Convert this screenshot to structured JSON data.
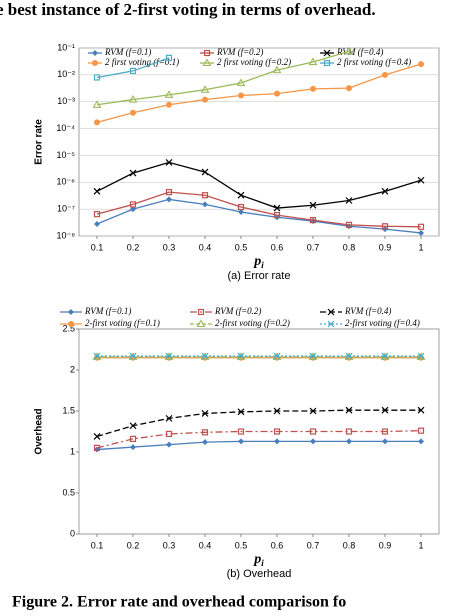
{
  "header_text": "e best instance of 2-first voting in terms of overhead.",
  "caption": "Figure 2. Error rate and overhead comparison fo",
  "chart_data": [
    {
      "type": "line",
      "subtitle": "(a) Error rate",
      "y_label": "Error rate",
      "x_label": {
        "text": "p",
        "subscript": "i"
      },
      "log_y": true,
      "grid": true,
      "x": [
        0.1,
        0.2,
        0.3,
        0.4,
        0.5,
        0.6,
        0.7,
        0.8,
        0.9,
        1
      ],
      "xlim": [
        0.05,
        1.05
      ],
      "xticks": [
        0.1,
        0.2,
        0.3,
        0.4,
        0.5,
        0.6,
        0.7,
        0.8,
        0.9,
        1
      ],
      "ylim": [
        1e-08,
        0.1
      ],
      "yticks": [
        {
          "value": 1e-08,
          "label": "10⁻⁸"
        },
        {
          "value": 1e-07,
          "label": "10⁻⁷"
        },
        {
          "value": 1e-06,
          "label": "10⁻⁶"
        },
        {
          "value": 1e-05,
          "label": "10⁻⁵"
        },
        {
          "value": 0.0001,
          "label": "10⁻⁴"
        },
        {
          "value": 0.001,
          "label": "10⁻³"
        },
        {
          "value": 0.01,
          "label": "10⁻²"
        },
        {
          "value": 0.1,
          "label": "10⁻¹"
        }
      ],
      "series": [
        {
          "name": "RVM (f=0.1)",
          "color": "#4a7ebb",
          "marker": "diamond",
          "values": [
            2.8e-08,
            1e-07,
            2.3e-07,
            1.5e-07,
            7.8e-08,
            5e-08,
            3.6e-08,
            2.3e-08,
            1.8e-08,
            1.3e-08
          ]
        },
        {
          "name": "RVM (f=0.2)",
          "color": "#c0504d",
          "marker": "square",
          "values": [
            6.5e-08,
            1.5e-07,
            4.3e-07,
            3.3e-07,
            1.2e-07,
            6e-08,
            3.9e-08,
            2.6e-08,
            2.3e-08,
            2.2e-08
          ]
        },
        {
          "name": "RVM (f=0.4)",
          "color": "#000000",
          "marker": "x",
          "values": [
            4.6e-07,
            2.2e-06,
            5.5e-06,
            2.4e-06,
            3.3e-07,
            1.1e-07,
            1.4e-07,
            2.1e-07,
            4.6e-07,
            1.19e-06
          ]
        },
        {
          "name": "2 first voting (f=0.1)",
          "color": "#f79646",
          "marker": "circle",
          "values": [
            0.00017,
            0.00039,
            0.00077,
            0.0012,
            0.0017,
            0.002,
            0.003,
            0.0032,
            0.01,
            0.025
          ]
        },
        {
          "name": "2 first voting (f=0.2)",
          "color": "#9bbb59",
          "marker": "triangle",
          "values": [
            0.00077,
            0.0012,
            0.0018,
            0.0028,
            0.005,
            0.015,
            0.03,
            0.075,
            null,
            null
          ]
        },
        {
          "name": "2 first voting (f=0.4)",
          "color": "#4bacc6",
          "marker": "square",
          "values": [
            0.008,
            0.014,
            0.043,
            null,
            null,
            null,
            null,
            null,
            null,
            null
          ]
        }
      ]
    },
    {
      "type": "line",
      "subtitle": "(b) Overhead",
      "y_label": "Overhead",
      "x_label": {
        "text": "p",
        "subscript": "i"
      },
      "log_y": false,
      "grid": false,
      "x": [
        0.1,
        0.2,
        0.3,
        0.4,
        0.5,
        0.6,
        0.7,
        0.8,
        0.9,
        1
      ],
      "xlim": [
        0.05,
        1.05
      ],
      "xticks": [
        0.1,
        0.2,
        0.3,
        0.4,
        0.5,
        0.6,
        0.7,
        0.8,
        0.9,
        1
      ],
      "ylim": [
        0,
        2.5
      ],
      "yticks": [
        0,
        0.5,
        1,
        1.5,
        2,
        2.5
      ],
      "series": [
        {
          "name": "RVM (f=0.1)",
          "color": "#4a7ebb",
          "marker": "diamond",
          "dash": "none",
          "values": [
            1.03,
            1.06,
            1.09,
            1.12,
            1.13,
            1.13,
            1.13,
            1.13,
            1.13,
            1.13
          ]
        },
        {
          "name": "RVM (f=0.2)",
          "color": "#c0504d",
          "marker": "square",
          "dash": "7,3,2,3",
          "values": [
            1.05,
            1.16,
            1.22,
            1.24,
            1.25,
            1.25,
            1.25,
            1.25,
            1.25,
            1.26
          ]
        },
        {
          "name": "RVM (f=0.4)",
          "color": "#000000",
          "marker": "x",
          "dash": "6,3",
          "values": [
            1.19,
            1.32,
            1.41,
            1.47,
            1.49,
            1.5,
            1.5,
            1.51,
            1.51,
            1.51
          ]
        },
        {
          "name": "2-first voting (f=0.1)",
          "color": "#f79646",
          "marker": "circle",
          "dash": "none",
          "values": [
            2.15,
            2.15,
            2.15,
            2.15,
            2.15,
            2.15,
            2.15,
            2.15,
            2.15,
            2.15
          ]
        },
        {
          "name": "2-first voting (f=0.2)",
          "color": "#9bbb59",
          "marker": "triangle",
          "dash": "4,2",
          "values": [
            2.16,
            2.16,
            2.16,
            2.16,
            2.16,
            2.16,
            2.16,
            2.16,
            2.16,
            2.16
          ]
        },
        {
          "name": "2-first voting (f=0.4)",
          "color": "#4bacc6",
          "marker": "x",
          "dash": "2,2",
          "values": [
            2.17,
            2.17,
            2.17,
            2.17,
            2.17,
            2.17,
            2.17,
            2.17,
            2.17,
            2.17
          ]
        }
      ]
    }
  ]
}
